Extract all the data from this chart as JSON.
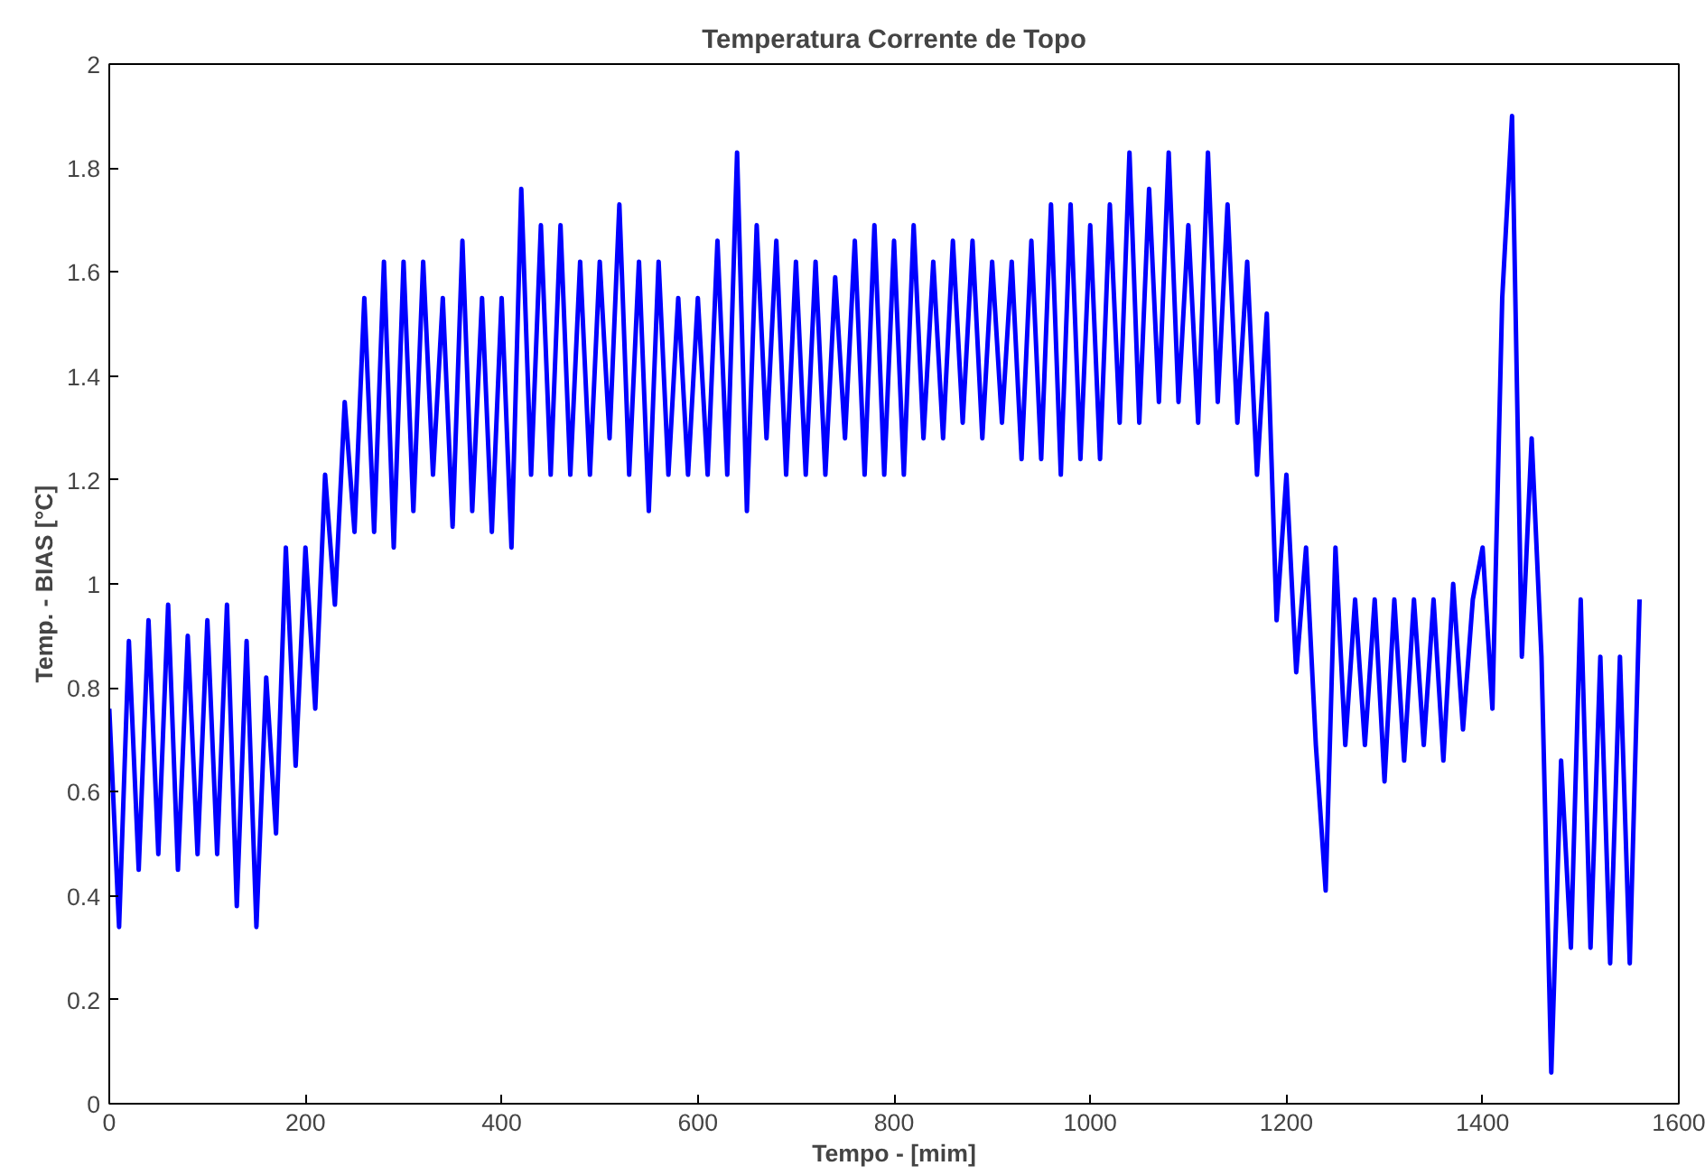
{
  "chart_data": {
    "type": "line",
    "title": "Temperatura Corrente de Topo",
    "xlabel": "Tempo - [mim]",
    "ylabel": "Temp. - BIAS [°C]",
    "xlim": [
      0,
      1600
    ],
    "ylim": [
      0,
      2
    ],
    "xticks": [
      0,
      200,
      400,
      600,
      800,
      1000,
      1200,
      1400,
      1600
    ],
    "yticks": [
      0,
      0.2,
      0.4,
      0.6,
      0.8,
      1,
      1.2,
      1.4,
      1.6,
      1.8,
      2
    ],
    "grid": false,
    "marker": "none",
    "line_style": "solid",
    "series": [
      {
        "color": "#0000ff",
        "x": [
          0,
          10,
          20,
          30,
          40,
          50,
          60,
          70,
          80,
          90,
          100,
          110,
          120,
          130,
          140,
          150,
          160,
          170,
          180,
          190,
          200,
          210,
          220,
          230,
          240,
          250,
          260,
          270,
          280,
          290,
          300,
          310,
          320,
          330,
          340,
          350,
          360,
          370,
          380,
          390,
          400,
          410,
          420,
          430,
          440,
          450,
          460,
          470,
          480,
          490,
          500,
          510,
          520,
          530,
          540,
          550,
          560,
          570,
          580,
          590,
          600,
          610,
          620,
          630,
          640,
          650,
          660,
          670,
          680,
          690,
          700,
          710,
          720,
          730,
          740,
          750,
          760,
          770,
          780,
          790,
          800,
          810,
          820,
          830,
          840,
          850,
          860,
          870,
          880,
          890,
          900,
          910,
          920,
          930,
          940,
          950,
          960,
          970,
          980,
          990,
          1000,
          1010,
          1020,
          1030,
          1040,
          1050,
          1060,
          1070,
          1080,
          1090,
          1100,
          1110,
          1120,
          1130,
          1140,
          1150,
          1160,
          1170,
          1180,
          1190,
          1200,
          1210,
          1220,
          1230,
          1240,
          1250,
          1260,
          1270,
          1280,
          1290,
          1300,
          1310,
          1320,
          1330,
          1340,
          1350,
          1360,
          1370,
          1380,
          1390,
          1400,
          1410,
          1420,
          1430,
          1440,
          1450,
          1460,
          1470,
          1480,
          1490,
          1500,
          1510,
          1520,
          1530,
          1540,
          1550,
          1560
        ],
        "values": [
          0.76,
          0.34,
          0.89,
          0.45,
          0.93,
          0.48,
          0.96,
          0.45,
          0.9,
          0.48,
          0.93,
          0.48,
          0.96,
          0.38,
          0.89,
          0.34,
          0.82,
          0.52,
          1.07,
          0.65,
          1.07,
          0.76,
          1.21,
          0.96,
          1.35,
          1.1,
          1.55,
          1.1,
          1.62,
          1.07,
          1.62,
          1.14,
          1.62,
          1.21,
          1.55,
          1.11,
          1.66,
          1.14,
          1.55,
          1.1,
          1.55,
          1.07,
          1.76,
          1.21,
          1.69,
          1.21,
          1.69,
          1.21,
          1.62,
          1.21,
          1.62,
          1.28,
          1.73,
          1.21,
          1.62,
          1.14,
          1.62,
          1.21,
          1.55,
          1.21,
          1.55,
          1.21,
          1.66,
          1.21,
          1.83,
          1.14,
          1.69,
          1.28,
          1.66,
          1.21,
          1.62,
          1.21,
          1.62,
          1.21,
          1.59,
          1.28,
          1.66,
          1.21,
          1.69,
          1.21,
          1.66,
          1.21,
          1.69,
          1.28,
          1.62,
          1.28,
          1.66,
          1.31,
          1.66,
          1.28,
          1.62,
          1.31,
          1.62,
          1.24,
          1.66,
          1.24,
          1.73,
          1.21,
          1.73,
          1.24,
          1.69,
          1.24,
          1.73,
          1.31,
          1.83,
          1.31,
          1.76,
          1.35,
          1.83,
          1.35,
          1.69,
          1.31,
          1.83,
          1.35,
          1.73,
          1.31,
          1.62,
          1.21,
          1.52,
          0.93,
          1.21,
          0.83,
          1.07,
          0.69,
          0.41,
          1.07,
          0.69,
          0.97,
          0.69,
          0.97,
          0.62,
          0.97,
          0.66,
          0.97,
          0.69,
          0.97,
          0.66,
          1.0,
          0.72,
          0.97,
          1.07,
          0.76,
          1.55,
          1.9,
          0.86,
          1.28,
          0.86,
          0.06,
          0.66,
          0.3,
          0.97,
          0.3,
          0.86,
          0.27,
          0.86,
          0.27,
          0.97
        ]
      }
    ]
  }
}
